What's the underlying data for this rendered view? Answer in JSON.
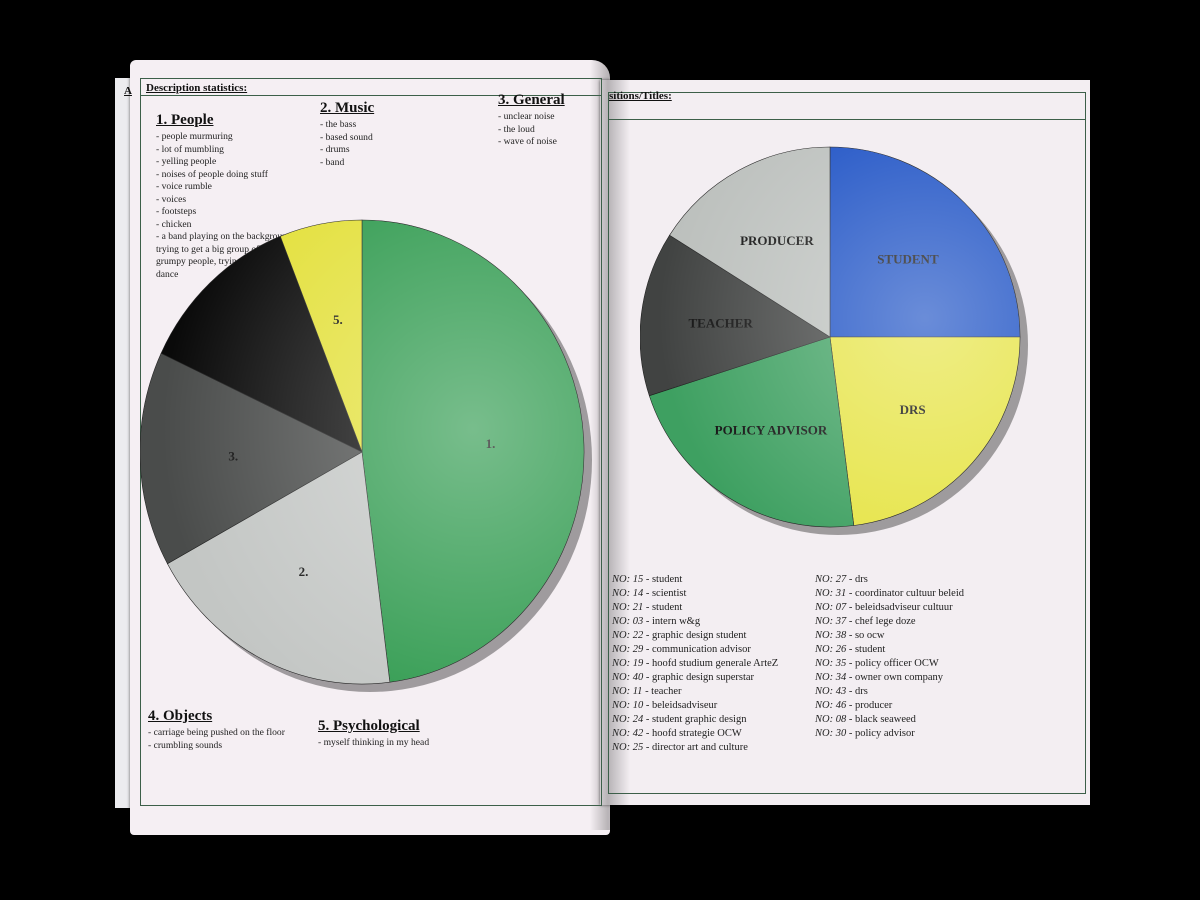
{
  "left_page": {
    "header_fragment": "A",
    "header": "Description statistics:",
    "sections": [
      {
        "title": "1. People",
        "items": [
          "people murmuring",
          "lot of mumbling",
          "yelling people",
          "noises of people doing stuff",
          "voice rumble",
          "voices",
          "footsteps",
          "chicken",
          "a band playing on the background, trying to get a big group of old grumpy people, trying to make them dance"
        ]
      },
      {
        "title": "2. Music",
        "items": [
          "the bass",
          "based sound",
          "drums",
          "band"
        ]
      },
      {
        "title": "3. General",
        "items": [
          "unclear noise",
          "the loud",
          "wave of noise"
        ]
      },
      {
        "title": "4. Objects",
        "items": [
          "carriage being pushed on the floor",
          "crumbling sounds"
        ]
      },
      {
        "title": "5. Psychological",
        "items": [
          "myself thinking in my head"
        ]
      }
    ]
  },
  "right_page": {
    "header": "sitions/Titles:",
    "legend": [
      {
        "no": "NO: 15",
        "label": "student"
      },
      {
        "no": "NO: 14",
        "label": "scientist"
      },
      {
        "no": "NO: 21",
        "label": "student"
      },
      {
        "no": "NO: 03",
        "label": "intern w&g"
      },
      {
        "no": "NO:  22",
        "label": "graphic design student"
      },
      {
        "no": "NO: 29",
        "label": "communication advisor"
      },
      {
        "no": "NO: 19",
        "label": "hoofd studium generale ArteZ"
      },
      {
        "no": "NO: 40",
        "label": "graphic design superstar"
      },
      {
        "no": "NO: 11",
        "label": "teacher"
      },
      {
        "no": "NO: 10",
        "label": "beleidsadviseur"
      },
      {
        "no": "NO: 24",
        "label": "student graphic design"
      },
      {
        "no": "NO: 42",
        "label": "hoofd strategie OCW"
      },
      {
        "no": "NO: 25",
        "label": "director art and culture"
      },
      {
        "no": "NO: 27",
        "label": "drs"
      },
      {
        "no": "NO: 31",
        "label": "coordinator cultuur beleid"
      },
      {
        "no": "NO: 07",
        "label": "beleidsadviseur cultuur"
      },
      {
        "no": "NO: 37",
        "label": "chef lege doze"
      },
      {
        "no": "NO: 38",
        "label": "so ocw"
      },
      {
        "no": "NO: 26",
        "label": "student"
      },
      {
        "no": "NO: 35",
        "label": "policy officer OCW"
      },
      {
        "no": "NO: 34",
        "label": "owner own company"
      },
      {
        "no": "NO: 43",
        "label": "drs"
      },
      {
        "no": "NO: 46",
        "label": "producer"
      },
      {
        "no": "NO: 08",
        "label": "black seaweed"
      },
      {
        "no": "NO: 30",
        "label": "policy advisor"
      }
    ]
  },
  "chart_data": [
    {
      "type": "pie",
      "slices": [
        {
          "label": "1.",
          "value": 48,
          "color": "#2f9a4e"
        },
        {
          "label": "2.",
          "value": 19,
          "color": "#c3c6c4"
        },
        {
          "label": "3.",
          "value": 15,
          "color": "#4a4c4b"
        },
        {
          "label": "",
          "value": 12,
          "color": "#0a0a0a"
        },
        {
          "label": "5.",
          "value": 6,
          "color": "#e3e03a"
        }
      ]
    },
    {
      "type": "pie",
      "slices": [
        {
          "label": "STUDENT",
          "value": 25,
          "color": "#1a4fc4"
        },
        {
          "label": "DRS",
          "value": 23,
          "color": "#e6e446"
        },
        {
          "label": "POLICY ADVISOR",
          "value": 22,
          "color": "#3ea061"
        },
        {
          "label": "TEACHER",
          "value": 14,
          "color": "#414342"
        },
        {
          "label": "PRODUCER",
          "value": 16,
          "color": "#bcc0bd"
        }
      ]
    }
  ]
}
